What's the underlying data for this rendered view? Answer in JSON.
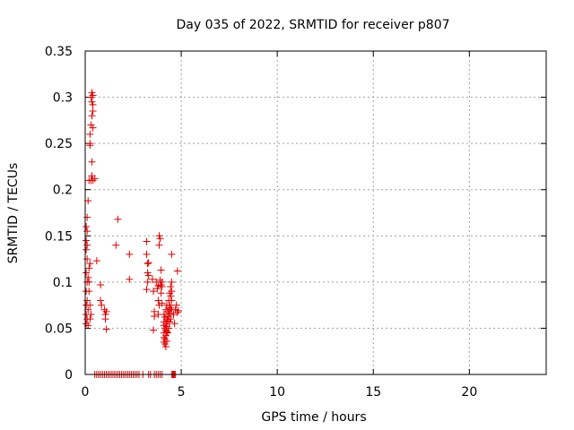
{
  "chart_data": {
    "type": "scatter",
    "title": "Day 035 of 2022, SRMTID for receiver p807",
    "xlabel": "GPS time / hours",
    "ylabel": "SRMTID / TECUs",
    "xlim": [
      0,
      24
    ],
    "ylim": [
      0,
      0.35
    ],
    "xticks": [
      0,
      5,
      10,
      15,
      20
    ],
    "yticks": [
      0,
      0.05,
      0.1,
      0.15,
      0.2,
      0.25,
      0.3,
      0.35
    ],
    "xtick_labels": [
      "0",
      "5",
      "10",
      "15",
      "20"
    ],
    "ytick_labels": [
      "0",
      "0.05",
      "0.1",
      "0.15",
      "0.2",
      "0.25",
      "0.3",
      "0.35"
    ],
    "grid": true,
    "marker": "+",
    "marker_color": "#e00000",
    "series": [
      {
        "name": "SRMTID",
        "points": [
          [
            0.05,
            0.16
          ],
          [
            0.05,
            0.145
          ],
          [
            0.05,
            0.135
          ],
          [
            0.05,
            0.11
          ],
          [
            0.05,
            0.09
          ],
          [
            0.05,
            0.075
          ],
          [
            0.05,
            0.065
          ],
          [
            0.05,
            0.055
          ],
          [
            0.1,
            0.17
          ],
          [
            0.1,
            0.155
          ],
          [
            0.1,
            0.14
          ],
          [
            0.1,
            0.125
          ],
          [
            0.1,
            0.1
          ],
          [
            0.1,
            0.08
          ],
          [
            0.1,
            0.06
          ],
          [
            0.15,
            0.188
          ],
          [
            0.15,
            0.105
          ],
          [
            0.15,
            0.07
          ],
          [
            0.15,
            0.053
          ],
          [
            0.2,
            0.21
          ],
          [
            0.2,
            0.115
          ],
          [
            0.2,
            0.1
          ],
          [
            0.2,
            0.09
          ],
          [
            0.25,
            0.25
          ],
          [
            0.25,
            0.248
          ],
          [
            0.25,
            0.26
          ],
          [
            0.25,
            0.12
          ],
          [
            0.25,
            0.075
          ],
          [
            0.25,
            0.06
          ],
          [
            0.3,
            0.3
          ],
          [
            0.3,
            0.27
          ],
          [
            0.3,
            0.21
          ],
          [
            0.3,
            0.065
          ],
          [
            0.35,
            0.305
          ],
          [
            0.35,
            0.295
          ],
          [
            0.35,
            0.28
          ],
          [
            0.35,
            0.23
          ],
          [
            0.35,
            0.215
          ],
          [
            0.4,
            0.302
          ],
          [
            0.4,
            0.292
          ],
          [
            0.4,
            0.285
          ],
          [
            0.4,
            0.267
          ],
          [
            0.4,
            0.21
          ],
          [
            0.5,
            0.212
          ],
          [
            0.6,
            0.123
          ],
          [
            0.8,
            0.097
          ],
          [
            0.8,
            0.08
          ],
          [
            0.85,
            0.075
          ],
          [
            1.0,
            0.07
          ],
          [
            1.05,
            0.065
          ],
          [
            1.05,
            0.06
          ],
          [
            1.1,
            0.068
          ],
          [
            1.1,
            0.049
          ],
          [
            1.6,
            0.14
          ],
          [
            1.7,
            0.168
          ],
          [
            2.3,
            0.13
          ],
          [
            2.3,
            0.103
          ],
          [
            3.2,
            0.144
          ],
          [
            3.2,
            0.13
          ],
          [
            3.25,
            0.12
          ],
          [
            3.25,
            0.11
          ],
          [
            3.3,
            0.121
          ],
          [
            3.3,
            0.107
          ],
          [
            3.25,
            0.1
          ],
          [
            3.2,
            0.092
          ],
          [
            3.5,
            0.103
          ],
          [
            3.55,
            0.09
          ],
          [
            3.6,
            0.068
          ],
          [
            3.6,
            0.063
          ],
          [
            3.55,
            0.048
          ],
          [
            3.7,
            0.1
          ],
          [
            3.75,
            0.093
          ],
          [
            3.8,
            0.096
          ],
          [
            3.8,
            0.08
          ],
          [
            3.85,
            0.15
          ],
          [
            3.85,
            0.14
          ],
          [
            3.9,
            0.147
          ],
          [
            3.85,
            0.075
          ],
          [
            3.8,
            0.065
          ],
          [
            3.9,
            0.102
          ],
          [
            3.95,
            0.113
          ],
          [
            3.95,
            0.088
          ],
          [
            3.95,
            0.097
          ],
          [
            4.0,
            0.1
          ],
          [
            4.0,
            0.095
          ],
          [
            4.0,
            0.077
          ],
          [
            4.1,
            0.065
          ],
          [
            4.1,
            0.057
          ],
          [
            4.1,
            0.053
          ],
          [
            4.1,
            0.045
          ],
          [
            4.1,
            0.04
          ],
          [
            4.1,
            0.035
          ],
          [
            4.15,
            0.062
          ],
          [
            4.15,
            0.05
          ],
          [
            4.15,
            0.038
          ],
          [
            4.15,
            0.033
          ],
          [
            4.2,
            0.07
          ],
          [
            4.2,
            0.055
          ],
          [
            4.2,
            0.048
          ],
          [
            4.2,
            0.042
          ],
          [
            4.2,
            0.03
          ],
          [
            4.25,
            0.075
          ],
          [
            4.25,
            0.06
          ],
          [
            4.25,
            0.052
          ],
          [
            4.25,
            0.046
          ],
          [
            4.25,
            0.036
          ],
          [
            4.3,
            0.068
          ],
          [
            4.3,
            0.058
          ],
          [
            4.3,
            0.045
          ],
          [
            4.35,
            0.08
          ],
          [
            4.35,
            0.07
          ],
          [
            4.35,
            0.063
          ],
          [
            4.35,
            0.05
          ],
          [
            4.4,
            0.088
          ],
          [
            4.4,
            0.075
          ],
          [
            4.4,
            0.066
          ],
          [
            4.4,
            0.057
          ],
          [
            4.45,
            0.095
          ],
          [
            4.45,
            0.085
          ],
          [
            4.45,
            0.072
          ],
          [
            4.45,
            0.06
          ],
          [
            4.5,
            0.1
          ],
          [
            4.5,
            0.09
          ],
          [
            4.5,
            0.08
          ],
          [
            4.5,
            0.07
          ],
          [
            4.5,
            0.13
          ],
          [
            4.6,
            0.065
          ],
          [
            4.65,
            0.055
          ],
          [
            4.7,
            0.07
          ],
          [
            4.75,
            0.075
          ],
          [
            4.8,
            0.112
          ],
          [
            4.8,
            0.067
          ],
          [
            4.85,
            0.069
          ],
          [
            0.5,
            0
          ],
          [
            0.6,
            0
          ],
          [
            0.7,
            0
          ],
          [
            0.8,
            0
          ],
          [
            0.9,
            0
          ],
          [
            1.0,
            0
          ],
          [
            1.1,
            0
          ],
          [
            1.2,
            0
          ],
          [
            1.3,
            0
          ],
          [
            1.4,
            0
          ],
          [
            1.5,
            0
          ],
          [
            1.6,
            0
          ],
          [
            1.7,
            0
          ],
          [
            1.8,
            0
          ],
          [
            1.9,
            0
          ],
          [
            2.0,
            0
          ],
          [
            2.1,
            0
          ],
          [
            2.2,
            0
          ],
          [
            2.3,
            0
          ],
          [
            2.4,
            0
          ],
          [
            2.5,
            0
          ],
          [
            2.6,
            0
          ],
          [
            2.7,
            0
          ],
          [
            2.8,
            0
          ],
          [
            3.0,
            0
          ],
          [
            3.3,
            0
          ],
          [
            3.4,
            0
          ],
          [
            3.6,
            0
          ],
          [
            3.7,
            0
          ],
          [
            3.8,
            0
          ],
          [
            3.9,
            0
          ],
          [
            4.0,
            0
          ],
          [
            4.5,
            0
          ],
          [
            4.55,
            0
          ],
          [
            4.6,
            0
          ],
          [
            4.65,
            0
          ],
          [
            4.7,
            0
          ]
        ]
      }
    ]
  }
}
